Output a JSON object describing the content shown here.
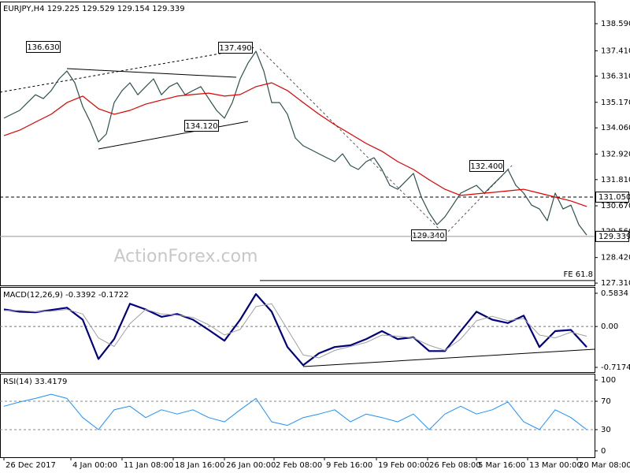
{
  "chart_data": [
    {
      "type": "line",
      "title": "EURJPY,H4  129.225 129.529 129.154 129.339",
      "watermark": "ActionForex.com",
      "ylim": [
        127.21,
        139.55
      ],
      "yticks": [
        {
          "value": 138.59,
          "label": "138.590"
        },
        {
          "value": 137.41,
          "label": "137.410"
        },
        {
          "value": 136.31,
          "label": "136.310"
        },
        {
          "value": 135.17,
          "label": "135.170"
        },
        {
          "value": 134.06,
          "label": "134.060"
        },
        {
          "value": 132.92,
          "label": "132.920"
        },
        {
          "value": 131.81,
          "label": "131.810"
        },
        {
          "value": 130.67,
          "label": "130.670"
        },
        {
          "value": 129.56,
          "label": "129.560"
        },
        {
          "value": 128.42,
          "label": "128.420"
        },
        {
          "value": 127.31,
          "label": "127.310"
        }
      ],
      "xlim": [
        -0.5,
        75
      ],
      "levels": [
        {
          "value": 131.05,
          "label": "131.050",
          "style": "dashed"
        },
        {
          "value": 129.339,
          "label": "129.339",
          "style": "solid"
        },
        {
          "value": 127.42,
          "label": "FE 61.8",
          "style": "fe"
        }
      ],
      "annotations": [
        "136.630",
        "137.490",
        "134.120",
        "132.400",
        "129.340"
      ],
      "series": [
        {
          "name": "EURJPY",
          "color": "#2f4f4f",
          "width": 1.2,
          "x": [
            0,
            1,
            2,
            3,
            4,
            5,
            6,
            7,
            8,
            9,
            10,
            11,
            12,
            13,
            14,
            15,
            16,
            17,
            18,
            19,
            20,
            21,
            22,
            23,
            24,
            25,
            26,
            27,
            28,
            29,
            30,
            31,
            32,
            33,
            34,
            35,
            36,
            37,
            38,
            39,
            40,
            41,
            42,
            43,
            44,
            45,
            46,
            47,
            48,
            49,
            50,
            51,
            52,
            53,
            54,
            55,
            56,
            57,
            58,
            59,
            60,
            61,
            62,
            63,
            64,
            65,
            66,
            67,
            68,
            69,
            70,
            71,
            72,
            73,
            74
          ],
          "values": [
            134.48,
            134.65,
            134.82,
            135.16,
            135.5,
            135.33,
            135.68,
            136.19,
            136.53,
            136.02,
            134.99,
            134.3,
            133.45,
            133.79,
            135.16,
            135.68,
            136.02,
            135.5,
            135.85,
            136.19,
            135.5,
            135.85,
            136.02,
            135.5,
            135.68,
            135.85,
            135.33,
            134.82,
            134.48,
            135.16,
            136.19,
            136.88,
            137.39,
            136.53,
            135.16,
            135.16,
            134.65,
            133.62,
            133.28,
            133.11,
            132.93,
            132.76,
            132.59,
            132.93,
            132.42,
            132.25,
            132.59,
            132.76,
            132.25,
            131.56,
            131.39,
            131.73,
            132.08,
            131.05,
            130.36,
            129.85,
            130.19,
            130.7,
            131.22,
            131.39,
            131.56,
            131.22,
            131.56,
            131.9,
            132.25,
            131.56,
            131.22,
            130.7,
            130.53,
            130.02,
            131.22,
            130.53,
            130.7,
            129.85,
            129.4
          ]
        },
        {
          "name": "MA",
          "color": "#e00000",
          "width": 1.2,
          "x": [
            0,
            2,
            4,
            6,
            8,
            10,
            12,
            14,
            16,
            18,
            20,
            22,
            24,
            26,
            28,
            30,
            32,
            34,
            36,
            38,
            40,
            42,
            44,
            46,
            48,
            50,
            52,
            54,
            56,
            58,
            60,
            62,
            64,
            66,
            68,
            70,
            72,
            74
          ],
          "values": [
            133.72,
            133.96,
            134.31,
            134.65,
            135.16,
            135.44,
            134.89,
            134.65,
            134.82,
            135.09,
            135.27,
            135.44,
            135.51,
            135.57,
            135.44,
            135.51,
            135.85,
            136.02,
            135.68,
            135.16,
            134.65,
            134.2,
            133.79,
            133.38,
            133.04,
            132.59,
            132.25,
            131.8,
            131.39,
            131.12,
            131.19,
            131.25,
            131.32,
            131.39,
            131.22,
            131.05,
            130.88,
            130.64
          ]
        }
      ]
    },
    {
      "type": "line",
      "title": "MACD(12,26,9) -0.3392 -0.1722",
      "ylim": [
        -0.8,
        0.694
      ],
      "yticks": [
        0.5834,
        {
          "value": 0,
          "label": "0.00"
        },
        -0.7174
      ],
      "xlim": [
        -0.5,
        75
      ],
      "series": [
        {
          "name": "MACD",
          "color": "#000080",
          "width": 2.2,
          "x": [
            0,
            2,
            4,
            6,
            8,
            10,
            12,
            14,
            16,
            18,
            20,
            22,
            24,
            26,
            28,
            30,
            32,
            34,
            36,
            38,
            40,
            42,
            44,
            46,
            48,
            50,
            52,
            54,
            56,
            58,
            60,
            62,
            64,
            66,
            68,
            70,
            72,
            74
          ],
          "values": [
            0.3,
            0.26,
            0.25,
            0.29,
            0.33,
            0.12,
            -0.57,
            -0.22,
            0.4,
            0.3,
            0.17,
            0.22,
            0.12,
            -0.06,
            -0.25,
            0.12,
            0.57,
            0.26,
            -0.36,
            -0.68,
            -0.47,
            -0.36,
            -0.33,
            -0.22,
            -0.08,
            -0.22,
            -0.19,
            -0.43,
            -0.43,
            -0.08,
            0.26,
            0.12,
            0.06,
            0.19,
            -0.36,
            -0.08,
            -0.06,
            -0.36
          ]
        },
        {
          "name": "Signal",
          "color": "#a0a0a0",
          "width": 1,
          "x": [
            0,
            2,
            4,
            6,
            8,
            10,
            12,
            14,
            16,
            18,
            20,
            22,
            24,
            26,
            28,
            30,
            32,
            34,
            36,
            38,
            40,
            42,
            44,
            46,
            48,
            50,
            52,
            54,
            56,
            58,
            60,
            62,
            64,
            66,
            68,
            70,
            72,
            74
          ],
          "values": [
            0.28,
            0.28,
            0.26,
            0.27,
            0.3,
            0.22,
            -0.2,
            -0.35,
            0.05,
            0.3,
            0.22,
            0.2,
            0.16,
            0.03,
            -0.15,
            -0.05,
            0.35,
            0.4,
            -0.05,
            -0.5,
            -0.55,
            -0.42,
            -0.35,
            -0.28,
            -0.15,
            -0.17,
            -0.2,
            -0.33,
            -0.42,
            -0.22,
            0.1,
            0.18,
            0.1,
            0.14,
            -0.15,
            -0.2,
            -0.1,
            -0.17
          ]
        }
      ]
    },
    {
      "type": "line",
      "title": "RSI(14) 33.4179",
      "ylim": [
        -9,
        109
      ],
      "yticks": [
        100,
        70,
        30,
        0
      ],
      "dashed_ticks": [
        70,
        30
      ],
      "xlim": [
        -0.5,
        75
      ],
      "xticks": [
        {
          "value": 0,
          "label": "26 Dec 2017"
        },
        {
          "value": 8.5,
          "label": "4 Jan 00:00"
        },
        {
          "value": 15,
          "label": "11 Jan 08:00"
        },
        {
          "value": 21.5,
          "label": "18 Jan 16:00"
        },
        {
          "value": 28,
          "label": "26 Jan 00:00"
        },
        {
          "value": 34.3,
          "label": "2 Feb 08:00"
        },
        {
          "value": 40.7,
          "label": "9 Feb 16:00"
        },
        {
          "value": 47.3,
          "label": "19 Feb 00:00"
        },
        {
          "value": 53.8,
          "label": "26 Feb 08:00"
        },
        {
          "value": 60,
          "label": "5 Mar 16:00"
        },
        {
          "value": 66.5,
          "label": "13 Mar 00:00"
        },
        {
          "value": 72.8,
          "label": "20 Mar 08:00"
        }
      ],
      "series": [
        {
          "name": "RSI",
          "color": "#1e90ff",
          "width": 1,
          "x": [
            0,
            2,
            4,
            6,
            8,
            10,
            12,
            14,
            16,
            18,
            20,
            22,
            24,
            26,
            28,
            30,
            32,
            34,
            36,
            38,
            40,
            42,
            44,
            46,
            48,
            50,
            52,
            54,
            56,
            58,
            60,
            62,
            64,
            66,
            68,
            70,
            72,
            74
          ],
          "values": [
            63,
            69,
            74,
            80,
            74,
            47,
            30,
            58,
            63,
            47,
            58,
            52,
            58,
            47,
            41,
            58,
            74,
            41,
            36,
            47,
            52,
            58,
            41,
            52,
            47,
            41,
            52,
            30,
            52,
            63,
            52,
            58,
            69,
            41,
            30,
            58,
            47,
            30
          ]
        }
      ]
    }
  ]
}
